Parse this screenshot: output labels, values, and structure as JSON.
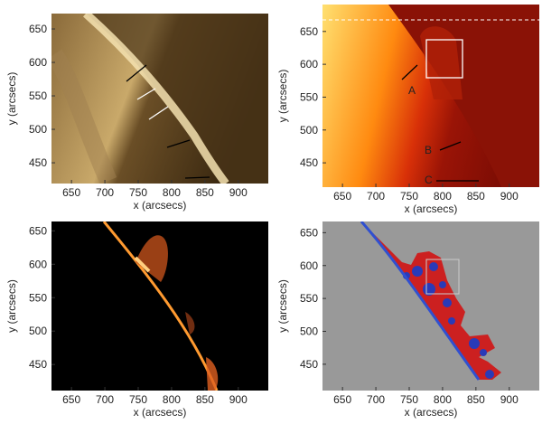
{
  "chart_data": [
    {
      "type": "image",
      "xlabel": "x (arcsecs)",
      "ylabel": "y (arcsecs)",
      "xlim": [
        620,
        945
      ],
      "ylim": [
        419,
        673
      ],
      "xticks": [
        650,
        700,
        750,
        800,
        850,
        900
      ],
      "yticks": [
        450,
        500,
        550,
        600,
        650
      ]
    },
    {
      "type": "image",
      "xlabel": "x (arcsecs)",
      "ylabel": "y (arcsecs)",
      "xlim": [
        620,
        945
      ],
      "ylim": [
        413,
        691
      ],
      "xticks": [
        650,
        700,
        750,
        800,
        850,
        900
      ],
      "yticks": [
        450,
        500,
        550,
        600,
        650
      ],
      "annotations": [
        "A",
        "B",
        "C"
      ]
    },
    {
      "type": "image",
      "xlabel": "x (arcsecs)",
      "ylabel": "y (arcsecs)",
      "xlim": [
        620,
        945
      ],
      "ylim": [
        411,
        664
      ],
      "xticks": [
        650,
        700,
        750,
        800,
        850,
        900
      ],
      "yticks": [
        450,
        500,
        550,
        600,
        650
      ]
    },
    {
      "type": "image",
      "xlabel": "x (arcsecs)",
      "ylabel": "y (arcsecs)",
      "xlim": [
        620,
        945
      ],
      "ylim": [
        410,
        667
      ],
      "xticks": [
        650,
        700,
        750,
        800,
        850,
        900
      ],
      "yticks": [
        450,
        500,
        550,
        600,
        650
      ]
    }
  ]
}
